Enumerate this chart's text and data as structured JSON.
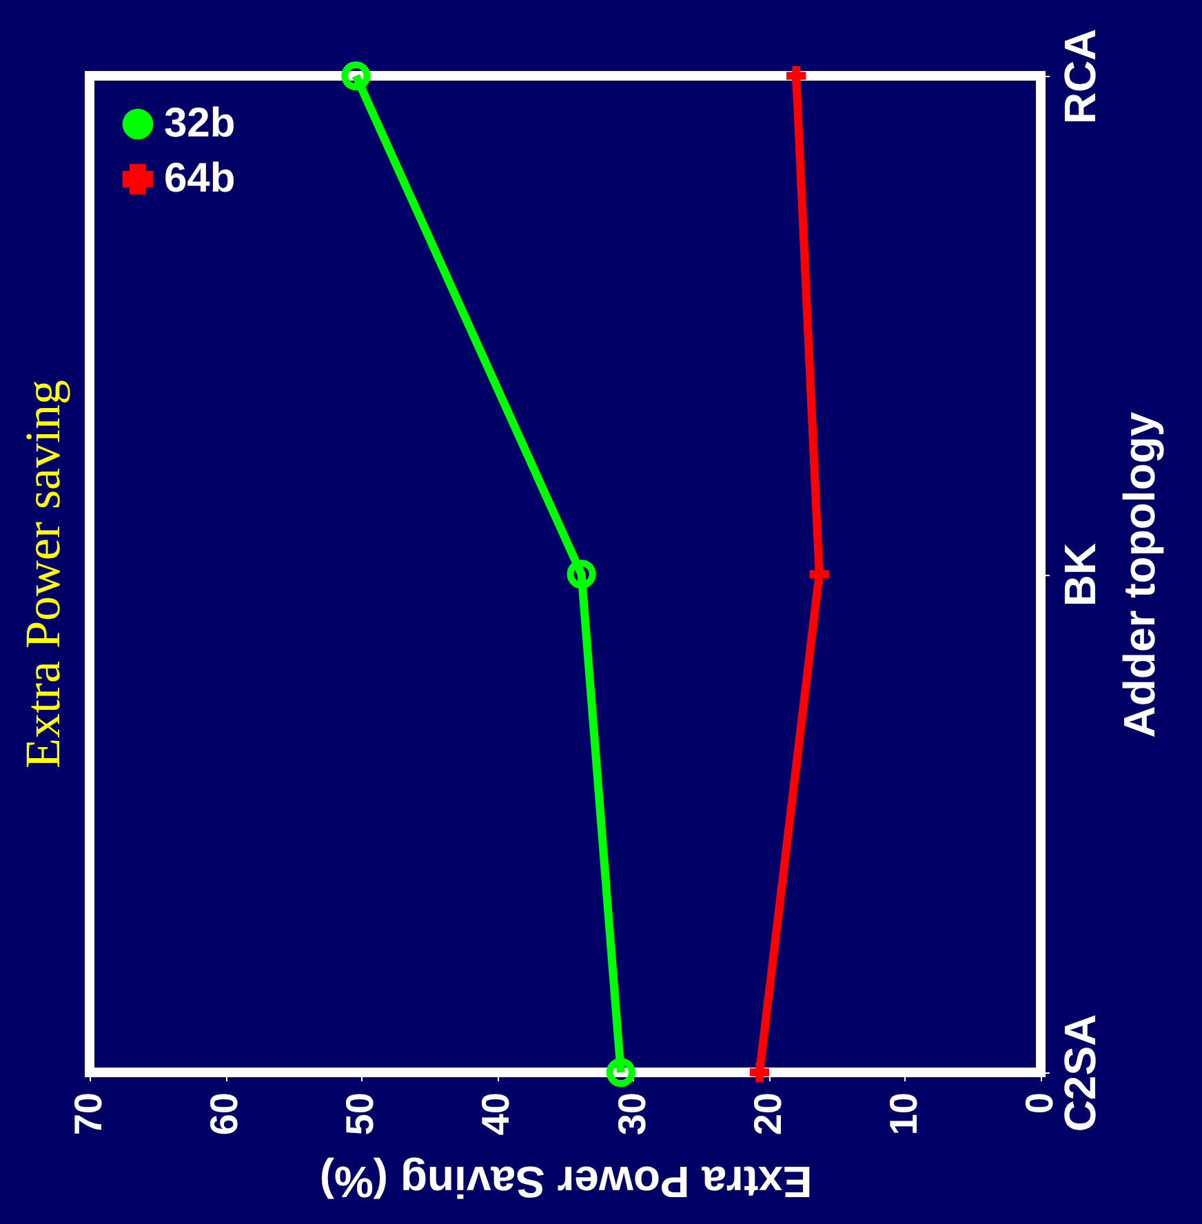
{
  "chart_data": {
    "type": "line",
    "title": "Extra Power saving",
    "xlabel": "Extra Power Saving (%)",
    "ylabel": "Adder topology",
    "orientation": "horizontal",
    "categories": [
      "RCA",
      "BK",
      "C2SA"
    ],
    "series": [
      {
        "name": "32b",
        "color": "#00ff00",
        "marker": "circle",
        "values": [
          50.4,
          33.8,
          30.9
        ]
      },
      {
        "name": "64b",
        "color": "#ff0000",
        "marker": "cross",
        "values": [
          18,
          16.3,
          20.7
        ]
      }
    ],
    "xlim": [
      70,
      0
    ],
    "xticks": [
      0,
      10,
      20,
      30,
      40,
      50,
      60,
      70
    ],
    "grid": false,
    "legend": "top left",
    "line_style": "solid"
  }
}
